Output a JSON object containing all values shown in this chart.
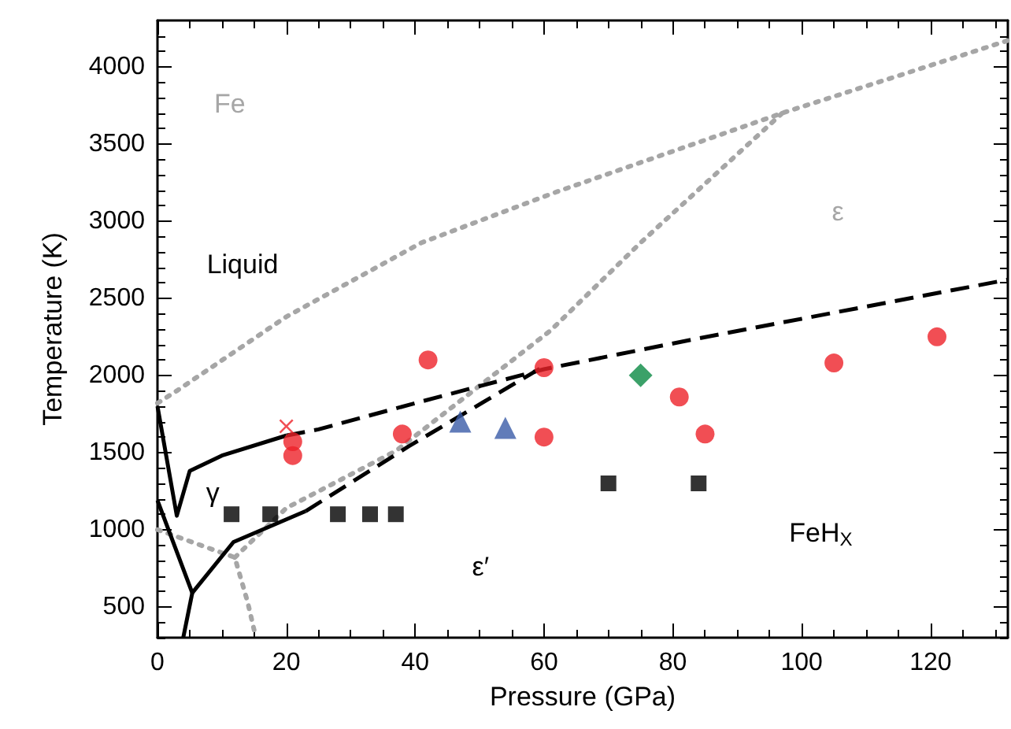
{
  "chart_data": {
    "type": "scatter",
    "xlabel": "Pressure (GPa)",
    "ylabel": "Temperature (K)",
    "xlim": [
      0,
      132
    ],
    "ylim": [
      300,
      4300
    ],
    "xticks": [
      0,
      {
        "value": 5,
        "label": null
      },
      {
        "value": 10,
        "label": null
      },
      {
        "value": 15,
        "label": null
      },
      20,
      {
        "value": 25,
        "label": null
      },
      {
        "value": 30,
        "label": null
      },
      {
        "value": 35,
        "label": null
      },
      40,
      {
        "value": 45,
        "label": null
      },
      {
        "value": 50,
        "label": null
      },
      {
        "value": 55,
        "label": null
      },
      60,
      {
        "value": 65,
        "label": null
      },
      {
        "value": 70,
        "label": null
      },
      {
        "value": 75,
        "label": null
      },
      80,
      {
        "value": 85,
        "label": null
      },
      {
        "value": 90,
        "label": null
      },
      {
        "value": 95,
        "label": null
      },
      100,
      {
        "value": 105,
        "label": null
      },
      {
        "value": 110,
        "label": null
      },
      {
        "value": 115,
        "label": null
      },
      120,
      {
        "value": 125,
        "label": null
      },
      {
        "value": 130,
        "label": null
      }
    ],
    "yticks": [
      {
        "value": 300,
        "label": null
      },
      {
        "value": 400,
        "label": null
      },
      500,
      {
        "value": 600,
        "label": null
      },
      {
        "value": 700,
        "label": null
      },
      {
        "value": 800,
        "label": null
      },
      {
        "value": 900,
        "label": null
      },
      1000,
      {
        "value": 1100,
        "label": null
      },
      {
        "value": 1200,
        "label": null
      },
      {
        "value": 1300,
        "label": null
      },
      {
        "value": 1400,
        "label": null
      },
      1500,
      {
        "value": 1600,
        "label": null
      },
      {
        "value": 1700,
        "label": null
      },
      {
        "value": 1800,
        "label": null
      },
      {
        "value": 1900,
        "label": null
      },
      2000,
      {
        "value": 2100,
        "label": null
      },
      {
        "value": 2200,
        "label": null
      },
      {
        "value": 2300,
        "label": null
      },
      {
        "value": 2400,
        "label": null
      },
      2500,
      {
        "value": 2600,
        "label": null
      },
      {
        "value": 2700,
        "label": null
      },
      {
        "value": 2800,
        "label": null
      },
      {
        "value": 2900,
        "label": null
      },
      3000,
      {
        "value": 3100,
        "label": null
      },
      {
        "value": 3200,
        "label": null
      },
      {
        "value": 3300,
        "label": null
      },
      {
        "value": 3400,
        "label": null
      },
      3500,
      {
        "value": 3600,
        "label": null
      },
      {
        "value": 3700,
        "label": null
      },
      {
        "value": 3800,
        "label": null
      },
      {
        "value": 3900,
        "label": null
      },
      4000,
      {
        "value": 4100,
        "label": null
      },
      {
        "value": 4200,
        "label": null
      }
    ],
    "grid": false,
    "series": [
      {
        "type": "line",
        "color": "#a6a6a6",
        "line_style": "dotted",
        "marker": "none",
        "x": [
          0,
          3,
          20,
          41,
          62,
          97,
          132
        ],
        "values": [
          1820,
          1900,
          2380,
          2860,
          3190,
          3700,
          4170
        ]
      },
      {
        "type": "line",
        "color": "#a6a6a6",
        "line_style": "dotted",
        "marker": "none",
        "x": [
          12,
          20,
          37,
          61,
          75,
          97
        ],
        "values": [
          820,
          1140,
          1510,
          2290,
          2860,
          3700
        ]
      },
      {
        "type": "line",
        "color": "#a6a6a6",
        "line_style": "dotted",
        "marker": "none",
        "x": [
          0,
          12,
          14,
          15
        ],
        "values": [
          1000,
          820,
          530,
          350
        ]
      },
      {
        "type": "line",
        "color": "#000000",
        "line_style": "solid",
        "marker": "none",
        "x": [
          0,
          3,
          5,
          10,
          20
        ],
        "values": [
          1800,
          1090,
          1380,
          1480,
          1610
        ]
      },
      {
        "type": "line",
        "color": "#000000",
        "line_style": "dashed",
        "marker": "none",
        "x": [
          20,
          25,
          40,
          60,
          84,
          132
        ],
        "values": [
          1610,
          1650,
          1820,
          2040,
          2240,
          2620
        ]
      },
      {
        "type": "line",
        "color": "#000000",
        "line_style": "dashed",
        "marker": "none",
        "x": [
          23,
          39,
          60
        ],
        "values": [
          1120,
          1540,
          2060
        ]
      },
      {
        "type": "line",
        "color": "#000000",
        "line_style": "solid",
        "marker": "none",
        "x": [
          0,
          5.4,
          11.8,
          23
        ],
        "values": [
          1190,
          590,
          920,
          1120
        ]
      },
      {
        "type": "line",
        "color": "#000000",
        "line_style": "solid",
        "marker": "none",
        "x": [
          4,
          5.4
        ],
        "values": [
          300,
          590
        ]
      },
      {
        "color": "#ee2229",
        "marker": "circle",
        "x": [
          42,
          38,
          60,
          60,
          81,
          85,
          105,
          121
        ],
        "values": [
          2100,
          1620,
          2050,
          1600,
          1860,
          1620,
          2080,
          2250
        ]
      },
      {
        "color": "#ee2229",
        "marker": "circle",
        "x": [
          21,
          21
        ],
        "values": [
          1570,
          1480
        ]
      },
      {
        "color": "#ee2229",
        "marker": "cross",
        "x": [
          20
        ],
        "values": [
          1670
        ]
      },
      {
        "color": "#3a5ba8",
        "marker": "triangle",
        "x": [
          47,
          54
        ],
        "values": [
          1700,
          1660
        ]
      },
      {
        "color": "#0a8a44",
        "marker": "diamond",
        "x": [
          75
        ],
        "values": [
          2000
        ]
      },
      {
        "color": "#000000",
        "marker": "square",
        "x": [
          28,
          37,
          70,
          84,
          11.5,
          17.5,
          33
        ],
        "values": [
          1100,
          1100,
          1300,
          1300,
          1100,
          1100,
          1100
        ]
      }
    ],
    "annotations": [
      "Fe",
      "Liquid",
      "ε",
      "γ",
      "ε′",
      "FeH$_{X}$"
    ]
  }
}
